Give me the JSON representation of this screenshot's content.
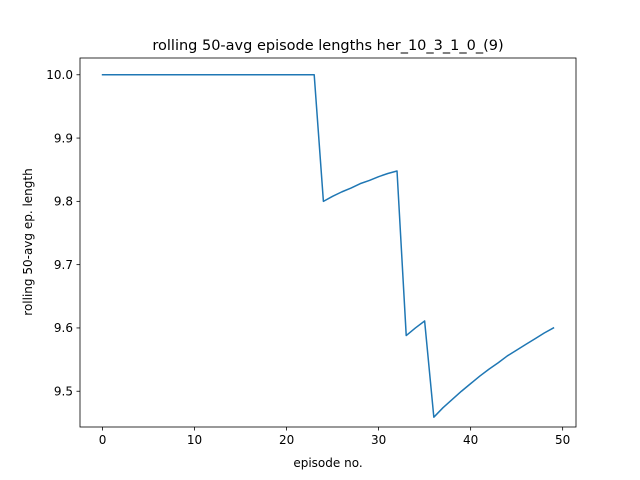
{
  "chart_data": {
    "type": "line",
    "title": "rolling 50-avg episode lengths her_10_3_1_0_(9)",
    "xlabel": "episode no.",
    "ylabel": "rolling 50-avg ep. length",
    "xlim": [
      -2.45,
      51.45
    ],
    "ylim": [
      9.4435,
      10.0265
    ],
    "xticks": [
      0,
      10,
      20,
      30,
      40,
      50
    ],
    "yticks": [
      9.5,
      9.6,
      9.7,
      9.8,
      9.9,
      10.0
    ],
    "ytick_labels": [
      "9.5",
      "9.6",
      "9.7",
      "9.8",
      "9.9",
      "10.0"
    ],
    "grid": false,
    "color": "#1f77b4",
    "series": [
      {
        "x": [
          0,
          1,
          2,
          3,
          4,
          5,
          6,
          7,
          8,
          9,
          10,
          11,
          12,
          13,
          14,
          15,
          16,
          17,
          18,
          19,
          20,
          21,
          22,
          23,
          24,
          25,
          26,
          27,
          28,
          29,
          30,
          31,
          32,
          33,
          34,
          35,
          36,
          37,
          38,
          39,
          40,
          41,
          42,
          43,
          44,
          45,
          46,
          47,
          48,
          49
        ],
        "values": [
          10.0,
          10.0,
          10.0,
          10.0,
          10.0,
          10.0,
          10.0,
          10.0,
          10.0,
          10.0,
          10.0,
          10.0,
          10.0,
          10.0,
          10.0,
          10.0,
          10.0,
          10.0,
          10.0,
          10.0,
          10.0,
          10.0,
          10.0,
          10.0,
          9.8,
          9.808,
          9.815,
          9.821,
          9.828,
          9.833,
          9.839,
          9.844,
          9.848,
          9.588,
          9.6,
          9.611,
          9.459,
          9.474,
          9.487,
          9.5,
          9.512,
          9.524,
          9.535,
          9.545,
          9.556,
          9.565,
          9.574,
          9.583,
          9.592,
          9.6
        ]
      }
    ]
  }
}
